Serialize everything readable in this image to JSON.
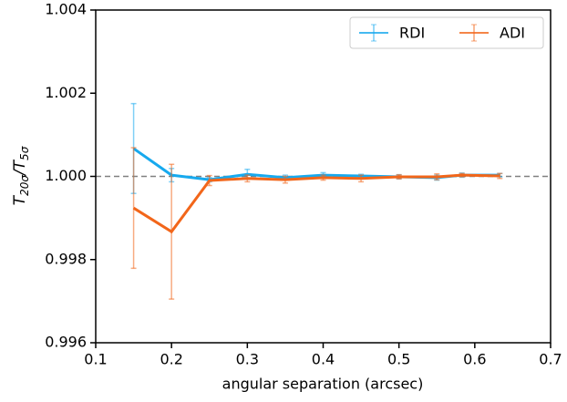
{
  "chart_data": {
    "type": "errorbar",
    "x_label": "angular separation (arcsec)",
    "y_label": [
      "T",
      "20σ",
      "/T",
      "5σ"
    ],
    "x": [
      0.15,
      0.2,
      0.25,
      0.3,
      0.35,
      0.4,
      0.45,
      0.5,
      0.55,
      0.583,
      0.633
    ],
    "series": [
      {
        "name": "RDI",
        "color": "#17a9ee",
        "values": [
          1.00067,
          1.00003,
          0.99992,
          1.00005,
          0.99997,
          1.00003,
          1.00001,
          0.99999,
          0.99997,
          1.00003,
          1.00003
        ],
        "errors": [
          0.00108,
          0.00016,
          5e-05,
          0.00012,
          6e-05,
          6e-05,
          4e-05,
          5e-05,
          6e-05,
          5e-05,
          4e-05
        ]
      },
      {
        "name": "ADI",
        "color": "#f2661a",
        "values": [
          0.99924,
          0.99867,
          0.9999,
          0.99995,
          0.99992,
          0.99997,
          0.99995,
          0.99999,
          0.99999,
          1.00003,
          1.00001
        ],
        "errors": [
          0.00145,
          0.00162,
          0.00012,
          8e-05,
          8e-05,
          6e-05,
          8e-05,
          5e-05,
          7e-05,
          4e-05,
          6e-05
        ]
      }
    ],
    "xlim": [
      0.1,
      0.7
    ],
    "xticks": [
      0.1,
      0.2,
      0.3,
      0.4,
      0.5,
      0.6,
      0.7
    ],
    "ylim": [
      0.996,
      1.004
    ],
    "yticks": [
      0.996,
      0.998,
      {
        "value": 1,
        "label": "1.000"
      },
      1.002,
      1.004
    ],
    "reference_line": 1,
    "legend": "upper right",
    "grid": false
  }
}
